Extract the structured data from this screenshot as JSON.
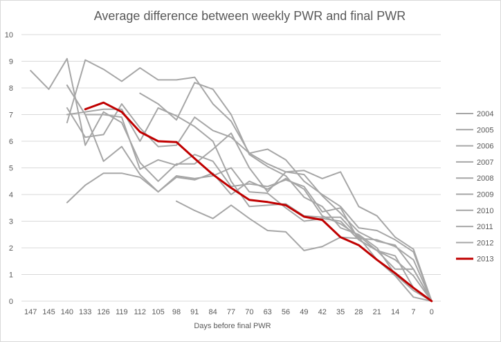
{
  "chart_data": {
    "type": "line",
    "title": "Average difference between weekly PWR and final PWR",
    "xlabel": "Days before final PWR",
    "ylabel": "",
    "categories": [
      "147",
      "145",
      "140",
      "133",
      "126",
      "119",
      "112",
      "105",
      "98",
      "91",
      "84",
      "77",
      "70",
      "63",
      "56",
      "49",
      "42",
      "35",
      "28",
      "21",
      "14",
      "7",
      "0"
    ],
    "ylim": [
      0,
      10
    ],
    "yticks": [
      0,
      1,
      2,
      3,
      4,
      5,
      6,
      7,
      8,
      9,
      10
    ],
    "grid": true,
    "legend_position": "right",
    "colors": {
      "background_series": "#a6a6a6",
      "highlight_series": "#c00000",
      "grid": "#d9d9d9",
      "text": "#595959"
    },
    "series": [
      {
        "name": "2004",
        "highlight": false,
        "values": [
          8.65,
          7.95,
          9.1,
          5.85,
          7.1,
          6.7,
          5.2,
          4.5,
          5.15,
          5.15,
          5.7,
          6.3,
          5.0,
          4.1,
          4.85,
          4.9,
          4.6,
          4.85,
          3.55,
          3.2,
          2.4,
          1.95,
          0
        ]
      },
      {
        "name": "2005",
        "highlight": false,
        "values": [
          null,
          null,
          8.1,
          7.0,
          5.25,
          5.8,
          4.75,
          4.1,
          4.65,
          4.55,
          4.8,
          4.0,
          4.5,
          4.2,
          4.6,
          4.2,
          3.2,
          2.9,
          2.45,
          1.9,
          1.2,
          1.2,
          0
        ]
      },
      {
        "name": "2006",
        "highlight": false,
        "values": [
          null,
          null,
          6.7,
          9.05,
          8.7,
          8.25,
          8.75,
          8.3,
          8.3,
          8.4,
          7.4,
          6.75,
          5.55,
          5.7,
          5.3,
          4.5,
          4.0,
          3.55,
          2.75,
          2.65,
          2.3,
          1.85,
          0
        ]
      },
      {
        "name": "2007",
        "highlight": false,
        "values": [
          null,
          null,
          3.7,
          4.35,
          4.8,
          4.8,
          4.65,
          4.1,
          4.7,
          4.6,
          4.7,
          5.0,
          4.1,
          4.05,
          3.5,
          3.0,
          3.1,
          3.0,
          2.3,
          1.9,
          1.7,
          0.5,
          0
        ]
      },
      {
        "name": "2008",
        "highlight": false,
        "values": [
          null,
          null,
          7.25,
          6.15,
          6.25,
          7.4,
          6.5,
          5.8,
          5.85,
          6.9,
          6.4,
          6.15,
          5.55,
          5.15,
          4.85,
          4.75,
          3.95,
          3.3,
          2.6,
          2.25,
          2.1,
          1.2,
          0
        ]
      },
      {
        "name": "2009",
        "highlight": false,
        "values": [
          null,
          null,
          null,
          null,
          null,
          null,
          7.8,
          7.4,
          6.8,
          8.2,
          7.95,
          7.0,
          5.5,
          5.05,
          4.7,
          3.9,
          3.55,
          2.75,
          2.5,
          2.0,
          1.0,
          0.4,
          0
        ]
      },
      {
        "name": "2010",
        "highlight": false,
        "values": [
          null,
          null,
          null,
          null,
          null,
          null,
          null,
          null,
          3.75,
          3.4,
          3.1,
          3.6,
          3.1,
          2.65,
          2.6,
          1.9,
          2.05,
          2.4,
          2.35,
          2.3,
          2.05,
          1.55,
          0
        ]
      },
      {
        "name": "2011",
        "highlight": false,
        "values": [
          null,
          null,
          7.0,
          7.1,
          7.2,
          7.2,
          6.0,
          7.25,
          6.95,
          6.55,
          6.0,
          4.5,
          3.55,
          3.6,
          3.65,
          3.2,
          3.15,
          3.15,
          2.4,
          1.55,
          0.95,
          0.15,
          0
        ]
      },
      {
        "name": "2012",
        "highlight": false,
        "values": [
          null,
          null,
          8.1,
          7.0,
          7.0,
          6.9,
          4.95,
          5.3,
          5.1,
          5.5,
          5.25,
          4.3,
          4.4,
          4.3,
          4.55,
          4.3,
          3.35,
          3.5,
          2.3,
          1.9,
          1.55,
          0.95,
          0
        ]
      },
      {
        "name": "2013",
        "highlight": true,
        "values": [
          null,
          null,
          null,
          7.2,
          7.45,
          7.1,
          6.35,
          6.0,
          5.97,
          5.35,
          4.75,
          4.25,
          3.8,
          3.72,
          3.6,
          3.17,
          3.05,
          2.4,
          2.1,
          1.55,
          1.05,
          0.5,
          0
        ]
      }
    ]
  }
}
